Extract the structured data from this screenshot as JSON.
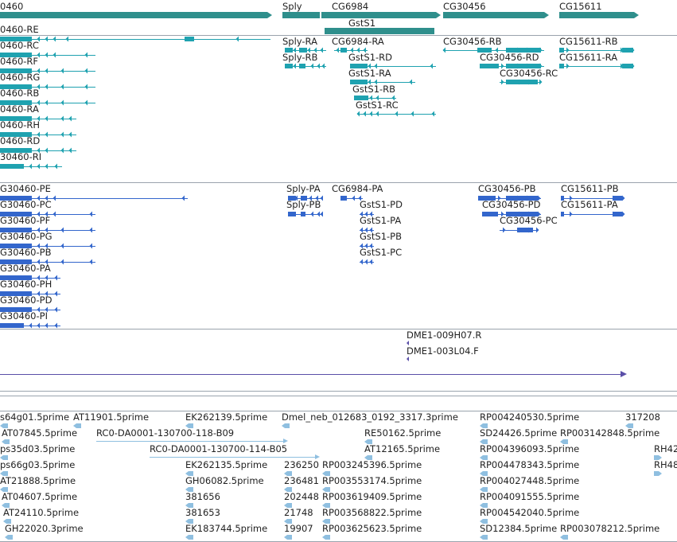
{
  "colors": {
    "gene": "#2f8f8c",
    "flybase_transcript": "#1fa2b0",
    "refseq_transcript": "#3366cc",
    "cdna_match": "#5a4fa8",
    "est": "#8fbfe0",
    "separator": "#9aa3ad"
  },
  "tracks": {
    "genes": [
      {
        "label": "0460"
      },
      {
        "label": "Sply"
      },
      {
        "label": "CG6984"
      },
      {
        "label": "GstS1"
      },
      {
        "label": "CG30456"
      },
      {
        "label": "CG15611"
      }
    ],
    "flybase_transcripts": [
      {
        "label": "0460-RE"
      },
      {
        "label": "0460-RC"
      },
      {
        "label": "0460-RF"
      },
      {
        "label": "0460-RG"
      },
      {
        "label": "0460-RB"
      },
      {
        "label": "0460-RA"
      },
      {
        "label": "0460-RH"
      },
      {
        "label": "0460-RD"
      },
      {
        "label": "30460-RI"
      },
      {
        "label": "Sply-RA"
      },
      {
        "label": "Sply-RB"
      },
      {
        "label": "CG6984-RA"
      },
      {
        "label": "GstS1-RD"
      },
      {
        "label": "GstS1-RA"
      },
      {
        "label": "GstS1-RB"
      },
      {
        "label": "GstS1-RC"
      },
      {
        "label": "CG30456-RB"
      },
      {
        "label": "CG30456-RD"
      },
      {
        "label": "CG30456-RC"
      },
      {
        "label": "CG15611-RB"
      },
      {
        "label": "CG15611-RA"
      }
    ],
    "refseq_transcripts": [
      {
        "label": "G30460-PE"
      },
      {
        "label": "G30460-PC"
      },
      {
        "label": "G30460-PF"
      },
      {
        "label": "G30460-PG"
      },
      {
        "label": "G30460-PB"
      },
      {
        "label": "G30460-PA"
      },
      {
        "label": "G30460-PH"
      },
      {
        "label": "G30460-PD"
      },
      {
        "label": "G30460-PI"
      },
      {
        "label": "Sply-PA"
      },
      {
        "label": "Sply-PB"
      },
      {
        "label": "CG6984-PA"
      },
      {
        "label": "GstS1-PD"
      },
      {
        "label": "GstS1-PA"
      },
      {
        "label": "GstS1-PB"
      },
      {
        "label": "GstS1-PC"
      },
      {
        "label": "CG30456-PB"
      },
      {
        "label": "CG30456-PD"
      },
      {
        "label": "CG30456-PC"
      },
      {
        "label": "CG15611-PB"
      },
      {
        "label": "CG15611-PA"
      }
    ],
    "cdna_matches": [
      {
        "label": "DME1-009H07.R"
      },
      {
        "label": "DME1-003L04.F"
      }
    ],
    "ests": [
      {
        "label": "s64g01.5prime"
      },
      {
        "label": "AT11901.5prime"
      },
      {
        "label": "EK262139.5prime"
      },
      {
        "label": "Dmel_neb_012683_0192_3317.3prime"
      },
      {
        "label": "RP004240530.5prime"
      },
      {
        "label": "317208"
      },
      {
        "label": "AT07845.5prime"
      },
      {
        "label": "RC0-DA0001-130700-118-B09"
      },
      {
        "label": "RE50162.5prime"
      },
      {
        "label": "SD24426.5prime"
      },
      {
        "label": "RP003142848.5prime"
      },
      {
        "label": "ps35d03.5prime"
      },
      {
        "label": "RC0-DA0001-130700-114-B05"
      },
      {
        "label": "AT12165.5prime"
      },
      {
        "label": "RP004396093.5prime"
      },
      {
        "label": "RH42"
      },
      {
        "label": "ps66g03.5prime"
      },
      {
        "label": "EK262135.5prime"
      },
      {
        "label": "236250"
      },
      {
        "label": "RP003245396.5prime"
      },
      {
        "label": "RP004478343.5prime"
      },
      {
        "label": "RH48"
      },
      {
        "label": "AT21888.5prime"
      },
      {
        "label": "GH06082.5prime"
      },
      {
        "label": "236481"
      },
      {
        "label": "RP003553174.5prime"
      },
      {
        "label": "RP004027448.5prime"
      },
      {
        "label": "AT04607.5prime"
      },
      {
        "label": "381656"
      },
      {
        "label": "202448"
      },
      {
        "label": "RP003619409.5prime"
      },
      {
        "label": "RP004091555.5prime"
      },
      {
        "label": "AT24110.5prime"
      },
      {
        "label": "381653"
      },
      {
        "label": "21748"
      },
      {
        "label": "RP003568822.5prime"
      },
      {
        "label": "RP004542040.5prime"
      },
      {
        "label": "GH22020.3prime"
      },
      {
        "label": "EK183744.5prime"
      },
      {
        "label": "19907"
      },
      {
        "label": "RP003625623.5prime"
      },
      {
        "label": "SD12384.5prime"
      },
      {
        "label": "RP003078212.5prime"
      }
    ]
  }
}
